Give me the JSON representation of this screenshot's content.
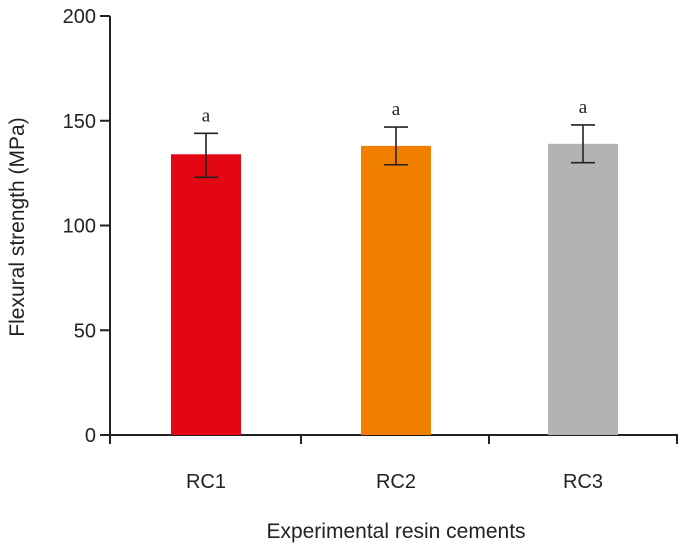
{
  "chart_data": {
    "type": "bar",
    "title": "",
    "xlabel": "Experimental resin cements",
    "ylabel": "Flexural strength (MPa)",
    "ylim": [
      0,
      200
    ],
    "yticks": [
      "0",
      "50",
      "100",
      "150",
      "200"
    ],
    "categories": [
      "RC1",
      "RC2",
      "RC3"
    ],
    "values": [
      134,
      138,
      139
    ],
    "error_low": [
      123,
      129,
      130
    ],
    "error_high": [
      144,
      147,
      148
    ],
    "significance": [
      "a",
      "a",
      "a"
    ],
    "colors": [
      "#e30613",
      "#f07f00",
      "#b3b3b3"
    ],
    "axis_color": "#222222",
    "grid": false
  }
}
